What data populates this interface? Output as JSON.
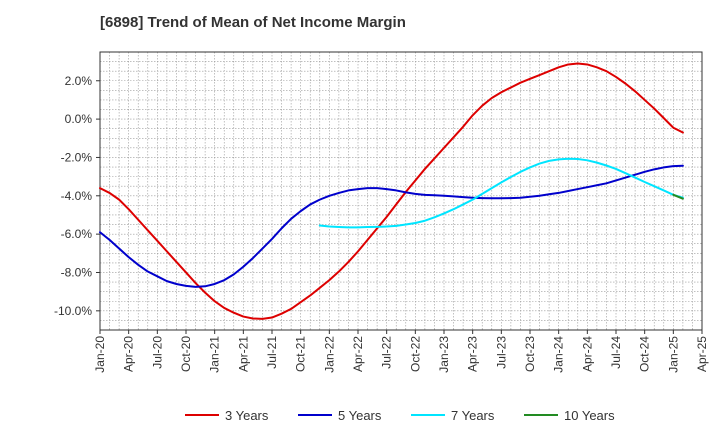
{
  "chart_data": {
    "type": "line",
    "title": "[6898]  Trend of Mean of Net Income Margin",
    "xlabel": "",
    "ylabel": "",
    "x_ticks": [
      "Jan-20",
      "Apr-20",
      "Jul-20",
      "Oct-20",
      "Jan-21",
      "Apr-21",
      "Jul-21",
      "Oct-21",
      "Jan-22",
      "Apr-22",
      "Jul-22",
      "Oct-22",
      "Jan-23",
      "Apr-23",
      "Jul-23",
      "Oct-23",
      "Jan-24",
      "Apr-24",
      "Jul-24",
      "Oct-24",
      "Jan-25",
      "Apr-25"
    ],
    "y_ticks": [
      "2.0%",
      "0.0%",
      "-2.0%",
      "-4.0%",
      "-6.0%",
      "-8.0%",
      "-10.0%"
    ],
    "y_tick_values": [
      2,
      0,
      -2,
      -4,
      -6,
      -8,
      -10
    ],
    "ylim": [
      -11,
      3.5
    ],
    "grid": true,
    "legend_position": "bottom",
    "series": [
      {
        "name": "3 Years",
        "color": "#dd0000",
        "points": [
          [
            "Jan-20",
            -3.6
          ],
          [
            "Feb-20",
            -3.85
          ],
          [
            "Mar-20",
            -4.2
          ],
          [
            "Apr-20",
            -4.7
          ],
          [
            "May-20",
            -5.25
          ],
          [
            "Jun-20",
            -5.8
          ],
          [
            "Jul-20",
            -6.35
          ],
          [
            "Aug-20",
            -6.9
          ],
          [
            "Sep-20",
            -7.45
          ],
          [
            "Oct-20",
            -8.0
          ],
          [
            "Nov-20",
            -8.55
          ],
          [
            "Dec-20",
            -9.05
          ],
          [
            "Jan-21",
            -9.5
          ],
          [
            "Feb-21",
            -9.85
          ],
          [
            "Mar-21",
            -10.1
          ],
          [
            "Apr-21",
            -10.3
          ],
          [
            "May-21",
            -10.4
          ],
          [
            "Jun-21",
            -10.42
          ],
          [
            "Jul-21",
            -10.35
          ],
          [
            "Aug-21",
            -10.15
          ],
          [
            "Sep-21",
            -9.9
          ],
          [
            "Oct-21",
            -9.55
          ],
          [
            "Nov-21",
            -9.2
          ],
          [
            "Dec-21",
            -8.8
          ],
          [
            "Jan-22",
            -8.4
          ],
          [
            "Feb-22",
            -7.95
          ],
          [
            "Mar-22",
            -7.45
          ],
          [
            "Apr-22",
            -6.9
          ],
          [
            "May-22",
            -6.3
          ],
          [
            "Jun-22",
            -5.7
          ],
          [
            "Jul-22",
            -5.1
          ],
          [
            "Aug-22",
            -4.45
          ],
          [
            "Sep-22",
            -3.8
          ],
          [
            "Oct-22",
            -3.2
          ],
          [
            "Nov-22",
            -2.6
          ],
          [
            "Dec-22",
            -2.05
          ],
          [
            "Jan-23",
            -1.5
          ],
          [
            "Feb-23",
            -0.95
          ],
          [
            "Mar-23",
            -0.4
          ],
          [
            "Apr-23",
            0.2
          ],
          [
            "May-23",
            0.7
          ],
          [
            "Jun-23",
            1.1
          ],
          [
            "Jul-23",
            1.4
          ],
          [
            "Aug-23",
            1.65
          ],
          [
            "Sep-23",
            1.9
          ],
          [
            "Oct-23",
            2.1
          ],
          [
            "Nov-23",
            2.3
          ],
          [
            "Dec-23",
            2.5
          ],
          [
            "Jan-24",
            2.7
          ],
          [
            "Feb-24",
            2.85
          ],
          [
            "Mar-24",
            2.9
          ],
          [
            "Apr-24",
            2.85
          ],
          [
            "May-24",
            2.7
          ],
          [
            "Jun-24",
            2.5
          ],
          [
            "Jul-24",
            2.2
          ],
          [
            "Aug-24",
            1.85
          ],
          [
            "Sep-24",
            1.45
          ],
          [
            "Oct-24",
            1.0
          ],
          [
            "Nov-24",
            0.55
          ],
          [
            "Dec-24",
            0.05
          ],
          [
            "Jan-25",
            -0.45
          ],
          [
            "Feb-25",
            -0.7
          ]
        ]
      },
      {
        "name": "5 Years",
        "color": "#0000cc",
        "points": [
          [
            "Jan-20",
            -5.9
          ],
          [
            "Feb-20",
            -6.3
          ],
          [
            "Mar-20",
            -6.75
          ],
          [
            "Apr-20",
            -7.2
          ],
          [
            "May-20",
            -7.6
          ],
          [
            "Jun-20",
            -7.95
          ],
          [
            "Jul-20",
            -8.2
          ],
          [
            "Aug-20",
            -8.45
          ],
          [
            "Sep-20",
            -8.6
          ],
          [
            "Oct-20",
            -8.7
          ],
          [
            "Nov-20",
            -8.75
          ],
          [
            "Dec-20",
            -8.72
          ],
          [
            "Jan-21",
            -8.6
          ],
          [
            "Feb-21",
            -8.4
          ],
          [
            "Mar-21",
            -8.1
          ],
          [
            "Apr-21",
            -7.7
          ],
          [
            "May-21",
            -7.25
          ],
          [
            "Jun-21",
            -6.75
          ],
          [
            "Jul-21",
            -6.25
          ],
          [
            "Aug-21",
            -5.7
          ],
          [
            "Sep-21",
            -5.2
          ],
          [
            "Oct-21",
            -4.8
          ],
          [
            "Nov-21",
            -4.45
          ],
          [
            "Dec-21",
            -4.2
          ],
          [
            "Jan-22",
            -4.0
          ],
          [
            "Feb-22",
            -3.85
          ],
          [
            "Mar-22",
            -3.72
          ],
          [
            "Apr-22",
            -3.65
          ],
          [
            "May-22",
            -3.6
          ],
          [
            "Jun-22",
            -3.6
          ],
          [
            "Jul-22",
            -3.65
          ],
          [
            "Aug-22",
            -3.72
          ],
          [
            "Sep-22",
            -3.82
          ],
          [
            "Oct-22",
            -3.9
          ],
          [
            "Nov-22",
            -3.95
          ],
          [
            "Dec-22",
            -3.97
          ],
          [
            "Jan-23",
            -4.0
          ],
          [
            "Feb-23",
            -4.03
          ],
          [
            "Mar-23",
            -4.07
          ],
          [
            "Apr-23",
            -4.1
          ],
          [
            "May-23",
            -4.12
          ],
          [
            "Jun-23",
            -4.13
          ],
          [
            "Jul-23",
            -4.13
          ],
          [
            "Aug-23",
            -4.12
          ],
          [
            "Sep-23",
            -4.1
          ],
          [
            "Oct-23",
            -4.05
          ],
          [
            "Nov-23",
            -4.0
          ],
          [
            "Dec-23",
            -3.92
          ],
          [
            "Jan-24",
            -3.85
          ],
          [
            "Feb-24",
            -3.75
          ],
          [
            "Mar-24",
            -3.65
          ],
          [
            "Apr-24",
            -3.55
          ],
          [
            "May-24",
            -3.45
          ],
          [
            "Jun-24",
            -3.35
          ],
          [
            "Jul-24",
            -3.2
          ],
          [
            "Aug-24",
            -3.05
          ],
          [
            "Sep-24",
            -2.9
          ],
          [
            "Oct-24",
            -2.75
          ],
          [
            "Nov-24",
            -2.62
          ],
          [
            "Dec-24",
            -2.52
          ],
          [
            "Jan-25",
            -2.45
          ],
          [
            "Feb-25",
            -2.43
          ]
        ]
      },
      {
        "name": "7 Years",
        "color": "#00e5ff",
        "points": [
          [
            "Dec-21",
            -5.55
          ],
          [
            "Jan-22",
            -5.6
          ],
          [
            "Feb-22",
            -5.63
          ],
          [
            "Mar-22",
            -5.65
          ],
          [
            "Apr-22",
            -5.65
          ],
          [
            "May-22",
            -5.63
          ],
          [
            "Jun-22",
            -5.62
          ],
          [
            "Jul-22",
            -5.6
          ],
          [
            "Aug-22",
            -5.57
          ],
          [
            "Sep-22",
            -5.5
          ],
          [
            "Oct-22",
            -5.42
          ],
          [
            "Nov-22",
            -5.3
          ],
          [
            "Dec-22",
            -5.12
          ],
          [
            "Jan-23",
            -4.92
          ],
          [
            "Feb-23",
            -4.7
          ],
          [
            "Mar-23",
            -4.45
          ],
          [
            "Apr-23",
            -4.2
          ],
          [
            "May-23",
            -3.9
          ],
          [
            "Jun-23",
            -3.6
          ],
          [
            "Jul-23",
            -3.3
          ],
          [
            "Aug-23",
            -3.02
          ],
          [
            "Sep-23",
            -2.75
          ],
          [
            "Oct-23",
            -2.52
          ],
          [
            "Nov-23",
            -2.32
          ],
          [
            "Dec-23",
            -2.18
          ],
          [
            "Jan-24",
            -2.1
          ],
          [
            "Feb-24",
            -2.07
          ],
          [
            "Mar-24",
            -2.08
          ],
          [
            "Apr-24",
            -2.15
          ],
          [
            "May-24",
            -2.27
          ],
          [
            "Jun-24",
            -2.42
          ],
          [
            "Jul-24",
            -2.6
          ],
          [
            "Aug-24",
            -2.82
          ],
          [
            "Sep-24",
            -3.05
          ],
          [
            "Oct-24",
            -3.28
          ],
          [
            "Nov-24",
            -3.5
          ],
          [
            "Dec-24",
            -3.72
          ],
          [
            "Jan-25",
            -3.95
          ],
          [
            "Feb-25",
            -4.1
          ]
        ]
      },
      {
        "name": "10 Years",
        "color": "#228b22",
        "points": [
          [
            "Jan-25",
            -3.95
          ],
          [
            "Feb-25",
            -4.15
          ]
        ]
      }
    ]
  }
}
